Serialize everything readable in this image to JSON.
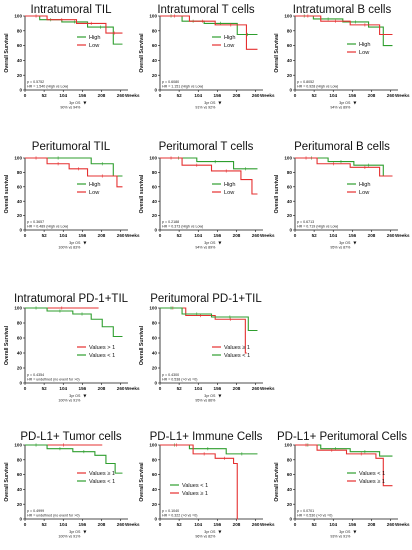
{
  "colors": {
    "high": "#2e9e2e",
    "low": "#e53030"
  },
  "axis": {
    "x_ticks": [
      "0",
      "52",
      "104",
      "156",
      "208",
      "260"
    ],
    "x_unit": "Weeks",
    "y_ticks": [
      "0",
      "20",
      "40",
      "60",
      "80",
      "100"
    ]
  },
  "chart_data": [
    {
      "type": "line",
      "title": "Intratumoral TIL",
      "ylabel": "Overall Survival",
      "xlabel": "Weeks",
      "xlim": [
        0,
        280
      ],
      "ylim": [
        0,
        100
      ],
      "legend": {
        "placement": "top-right",
        "entries": [
          "High",
          "Low"
        ]
      },
      "stats": [
        "p = 0.5752",
        "HR = 1.540 (High vs Low)"
      ],
      "os_label": "3yr OS",
      "os_text": "90% vs 94%",
      "series": [
        {
          "name": "High",
          "color": "#2e9e2e",
          "x": [
            0,
            40,
            40,
            100,
            100,
            170,
            170,
            240,
            240,
            265
          ],
          "y": [
            100,
            100,
            95,
            95,
            92,
            92,
            85,
            85,
            62,
            62
          ]
        },
        {
          "name": "Low",
          "color": "#e53030",
          "x": [
            0,
            60,
            60,
            140,
            140,
            220,
            220,
            265
          ],
          "y": [
            100,
            100,
            95,
            95,
            90,
            90,
            77,
            77
          ]
        }
      ]
    },
    {
      "type": "line",
      "title": "Intratumoral T cells",
      "ylabel": "Overall Survival",
      "xlabel": "Weeks",
      "xlim": [
        0,
        280
      ],
      "ylim": [
        0,
        100
      ],
      "legend": {
        "placement": "top-right",
        "entries": [
          "High",
          "Low"
        ]
      },
      "stats": [
        "p = 0.6080",
        "HR = 1.151 (High vs Low)"
      ],
      "os_label": "3yr OS",
      "os_text": "91% vs 92%",
      "series": [
        {
          "name": "High",
          "color": "#2e9e2e",
          "x": [
            0,
            60,
            60,
            120,
            120,
            210,
            210,
            265
          ],
          "y": [
            100,
            100,
            93,
            93,
            90,
            90,
            75,
            75
          ]
        },
        {
          "name": "Low",
          "color": "#e53030",
          "x": [
            0,
            80,
            80,
            150,
            150,
            235,
            235,
            265
          ],
          "y": [
            100,
            100,
            93,
            93,
            88,
            88,
            55,
            55
          ]
        }
      ]
    },
    {
      "type": "line",
      "title": "Intratumoral B cells",
      "ylabel": "Overall Survival",
      "xlabel": "Weeks",
      "xlim": [
        0,
        280
      ],
      "ylim": [
        0,
        100
      ],
      "legend": {
        "placement": "bottom-right",
        "entries": [
          "High",
          "Low"
        ]
      },
      "stats": [
        "p = 0.8052",
        "HR = 0.928 (High vs Low)"
      ],
      "os_label": "3yr OS",
      "os_text": "94% vs 89%",
      "series": [
        {
          "name": "High",
          "color": "#2e9e2e",
          "x": [
            0,
            50,
            50,
            130,
            130,
            200,
            200,
            240,
            240,
            265
          ],
          "y": [
            100,
            100,
            96,
            96,
            92,
            92,
            85,
            85,
            60,
            60
          ]
        },
        {
          "name": "Low",
          "color": "#e53030",
          "x": [
            0,
            70,
            70,
            150,
            150,
            230,
            230,
            265
          ],
          "y": [
            100,
            100,
            93,
            93,
            88,
            88,
            75,
            75
          ]
        }
      ]
    },
    {
      "type": "line",
      "title": "Peritumoral TIL",
      "ylabel": "Overall survival",
      "xlabel": "Weeks",
      "xlim": [
        0,
        280
      ],
      "ylim": [
        0,
        100
      ],
      "legend": {
        "placement": "bottom-right",
        "entries": [
          "High",
          "Low"
        ]
      },
      "stats": [
        "p = 0.3657",
        "HR = 0.489 (High vs Low)"
      ],
      "os_label": "3yr OS",
      "os_text": "100% vs 83%",
      "series": [
        {
          "name": "High",
          "color": "#2e9e2e",
          "x": [
            0,
            180,
            180,
            240,
            240,
            265
          ],
          "y": [
            100,
            100,
            92,
            92,
            75,
            75
          ]
        },
        {
          "name": "Low",
          "color": "#e53030",
          "x": [
            0,
            60,
            60,
            120,
            120,
            170,
            170,
            250,
            250,
            265
          ],
          "y": [
            100,
            100,
            92,
            92,
            85,
            85,
            75,
            75,
            60,
            60
          ]
        }
      ]
    },
    {
      "type": "line",
      "title": "Peritumoral T cells",
      "ylabel": "Overall survival",
      "xlabel": "Weeks",
      "xlim": [
        0,
        280
      ],
      "ylim": [
        0,
        100
      ],
      "legend": {
        "placement": "bottom-right",
        "entries": [
          "High",
          "Low"
        ]
      },
      "stats": [
        "p = 0.2188",
        "HR = 0.373 (High vs Low)"
      ],
      "os_label": "3yr OS",
      "os_text": "94% vs 89%",
      "series": [
        {
          "name": "High",
          "color": "#2e9e2e",
          "x": [
            0,
            100,
            100,
            200,
            200,
            265
          ],
          "y": [
            100,
            100,
            95,
            95,
            85,
            85
          ]
        },
        {
          "name": "Low",
          "color": "#e53030",
          "x": [
            0,
            60,
            60,
            140,
            140,
            220,
            220,
            250,
            250,
            265
          ],
          "y": [
            100,
            100,
            90,
            90,
            82,
            82,
            70,
            70,
            50,
            50
          ]
        }
      ]
    },
    {
      "type": "line",
      "title": "Peritumoral B cells",
      "ylabel": "Overall survival",
      "xlabel": "Weeks",
      "xlim": [
        0,
        280
      ],
      "ylim": [
        0,
        100
      ],
      "legend": {
        "placement": "bottom-right",
        "entries": [
          "High",
          "Low"
        ]
      },
      "stats": [
        "p = 0.6713",
        "HR = 0.719 (High vs Low)"
      ],
      "os_label": "3yr OS",
      "os_text": "95% vs 87%",
      "series": [
        {
          "name": "High",
          "color": "#2e9e2e",
          "x": [
            0,
            90,
            90,
            160,
            160,
            240,
            240,
            265
          ],
          "y": [
            100,
            100,
            95,
            95,
            90,
            90,
            75,
            75
          ]
        },
        {
          "name": "Low",
          "color": "#e53030",
          "x": [
            0,
            60,
            60,
            150,
            150,
            230,
            230,
            265
          ],
          "y": [
            100,
            100,
            92,
            92,
            87,
            87,
            75,
            75
          ]
        }
      ]
    },
    {
      "type": "line",
      "title": "Intratumoral PD-1+TIL",
      "ylabel": "Overall Survival",
      "xlabel": "Weeks",
      "xlim": [
        0,
        280
      ],
      "ylim": [
        0,
        100
      ],
      "legend": {
        "placement": "bottom-right",
        "entries": [
          "Values > 1",
          "Values < 1"
        ]
      },
      "stats": [
        "p = 0.4354",
        "HR = undefined (no event for >0)"
      ],
      "os_label": "3yr OS",
      "os_text": "100% vs 91%",
      "series": [
        {
          "name": "Values > 1",
          "color": "#e53030",
          "x": [
            0,
            200
          ],
          "y": [
            100,
            100
          ]
        },
        {
          "name": "Values < 1",
          "color": "#2e9e2e",
          "x": [
            0,
            60,
            60,
            130,
            130,
            180,
            180,
            210,
            210,
            240,
            240,
            265
          ],
          "y": [
            100,
            100,
            96,
            96,
            92,
            92,
            85,
            85,
            75,
            75,
            62,
            62
          ]
        }
      ]
    },
    {
      "type": "line",
      "title": "Peritumoral PD-1+TIL",
      "ylabel": "Overall Survival",
      "xlabel": "Weeks",
      "xlim": [
        0,
        280
      ],
      "ylim": [
        0,
        100
      ],
      "legend": {
        "placement": "bottom-right",
        "entries": [
          "Values ≥ 1",
          "Values < 1"
        ]
      },
      "stats": [
        "p = 0.4300",
        "HR = 0.538 (>0 vs =0)"
      ],
      "os_label": "3yr OS",
      "os_text": "95% vs 86%",
      "series": [
        {
          "name": "Values ≥ 1",
          "color": "#e53030",
          "x": [
            0,
            70,
            70,
            150,
            150,
            232,
            232,
            236
          ],
          "y": [
            100,
            100,
            90,
            90,
            85,
            85,
            40,
            40
          ]
        },
        {
          "name": "Values < 1",
          "color": "#2e9e2e",
          "x": [
            0,
            60,
            60,
            140,
            140,
            240,
            240,
            265
          ],
          "y": [
            100,
            100,
            92,
            92,
            88,
            88,
            70,
            70
          ]
        }
      ]
    },
    {
      "type": "line",
      "title": "PD-L1+ Tumor cells",
      "ylabel": "Overall Survival",
      "xlabel": "Weeks",
      "xlim": [
        0,
        280
      ],
      "ylim": [
        0,
        100
      ],
      "legend": {
        "placement": "bottom-right",
        "entries": [
          "Values ≥ 1",
          "Values < 1"
        ]
      },
      "stats": [
        "p = 0.4999",
        "HR = undefined (no event for >0)"
      ],
      "os_label": "3yr OS",
      "os_text": "100% vs 91%",
      "series": [
        {
          "name": "Values ≥ 1",
          "color": "#e53030",
          "x": [
            0,
            210
          ],
          "y": [
            100,
            100
          ]
        },
        {
          "name": "Values < 1",
          "color": "#2e9e2e",
          "x": [
            0,
            60,
            60,
            130,
            130,
            190,
            190,
            220,
            220,
            245,
            245,
            265
          ],
          "y": [
            100,
            100,
            95,
            95,
            91,
            91,
            86,
            86,
            75,
            75,
            62,
            62
          ]
        }
      ]
    },
    {
      "type": "line",
      "title": "PD-L1+ Immune Cells",
      "ylabel": "Overall Survival",
      "xlabel": "Weeks",
      "xlim": [
        0,
        280
      ],
      "ylim": [
        0,
        100
      ],
      "legend": {
        "placement": "bottom-left",
        "entries": [
          "Values < 1",
          "Values ≥ 1"
        ]
      },
      "stats": [
        "p = 0.1040",
        "HR = 0.322 (>0 vs =0)"
      ],
      "os_label": "3yr OS",
      "os_text": "96% vs 82%",
      "series": [
        {
          "name": "Values < 1",
          "color": "#2e9e2e",
          "x": [
            0,
            80,
            80,
            180,
            180,
            265
          ],
          "y": [
            100,
            100,
            95,
            95,
            88,
            88
          ]
        },
        {
          "name": "Values ≥ 1",
          "color": "#e53030",
          "x": [
            0,
            90,
            90,
            150,
            150,
            200,
            200,
            210,
            210,
            212
          ],
          "y": [
            100,
            100,
            88,
            88,
            82,
            82,
            75,
            75,
            0,
            0
          ]
        }
      ]
    },
    {
      "type": "line",
      "title": "PD-L1+ Peritumoral Cells",
      "ylabel": "Overall Survival",
      "xlabel": "Weeks",
      "xlim": [
        0,
        280
      ],
      "ylim": [
        0,
        100
      ],
      "legend": {
        "placement": "bottom-right",
        "entries": [
          "Values < 1",
          "Values ≥ 1"
        ]
      },
      "stats": [
        "p = 0.0701",
        "HR = 0.530 (>0 vs =0)"
      ],
      "os_label": "3yr OS",
      "os_text": "93% vs 91%",
      "series": [
        {
          "name": "Values < 1",
          "color": "#2e9e2e",
          "x": [
            0,
            70,
            70,
            150,
            150,
            230,
            230,
            265
          ],
          "y": [
            100,
            100,
            95,
            95,
            91,
            91,
            85,
            85
          ]
        },
        {
          "name": "Values ≥ 1",
          "color": "#e53030",
          "x": [
            0,
            60,
            60,
            140,
            140,
            220,
            220,
            240,
            240,
            265
          ],
          "y": [
            100,
            100,
            93,
            93,
            88,
            88,
            82,
            82,
            45,
            45
          ]
        }
      ]
    }
  ]
}
